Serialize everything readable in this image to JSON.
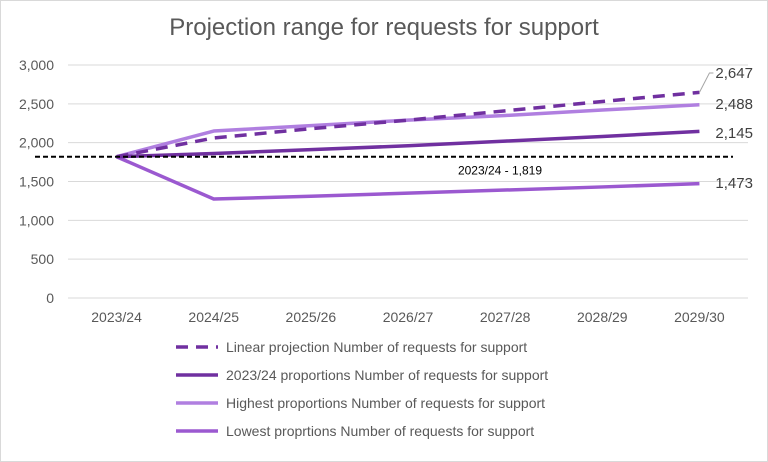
{
  "chart_data": {
    "type": "line",
    "title": "Projection range for requests for support",
    "xlabel": "",
    "ylabel": "",
    "categories": [
      "2023/24",
      "2024/25",
      "2025/26",
      "2026/27",
      "2027/28",
      "2028/29",
      "2029/30"
    ],
    "ylim": [
      0,
      3000
    ],
    "yticks": [
      "0",
      "500",
      "1,000",
      "1,500",
      "2,000",
      "2,500",
      "3,000"
    ],
    "grid": true,
    "legend_position": "bottom",
    "series": [
      {
        "name": "Linear projection Number of requests for support",
        "values": [
          1819,
          2060,
          2180,
          2290,
          2410,
          2530,
          2647
        ],
        "color": "#7030a0",
        "dash": true,
        "end_label": "2,647"
      },
      {
        "name": "2023/24 proportions Number of requests for support",
        "values": [
          1819,
          1860,
          1910,
          1960,
          2020,
          2080,
          2145
        ],
        "color": "#7030a0",
        "dash": false,
        "end_label": "2,145"
      },
      {
        "name": "Highest proportions Number of requests for support",
        "values": [
          1819,
          2150,
          2220,
          2290,
          2350,
          2420,
          2488
        ],
        "color": "#b07fe0",
        "dash": false,
        "end_label": "2,488"
      },
      {
        "name": "Lowest proprtions Number of requests for support",
        "values": [
          1819,
          1275,
          1310,
          1350,
          1390,
          1430,
          1473
        ],
        "color": "#9b59d0",
        "dash": false,
        "end_label": "1,473"
      }
    ],
    "reference_line": {
      "value": 1819,
      "label": "2023/24 - 1,819",
      "color": "#000000"
    }
  }
}
